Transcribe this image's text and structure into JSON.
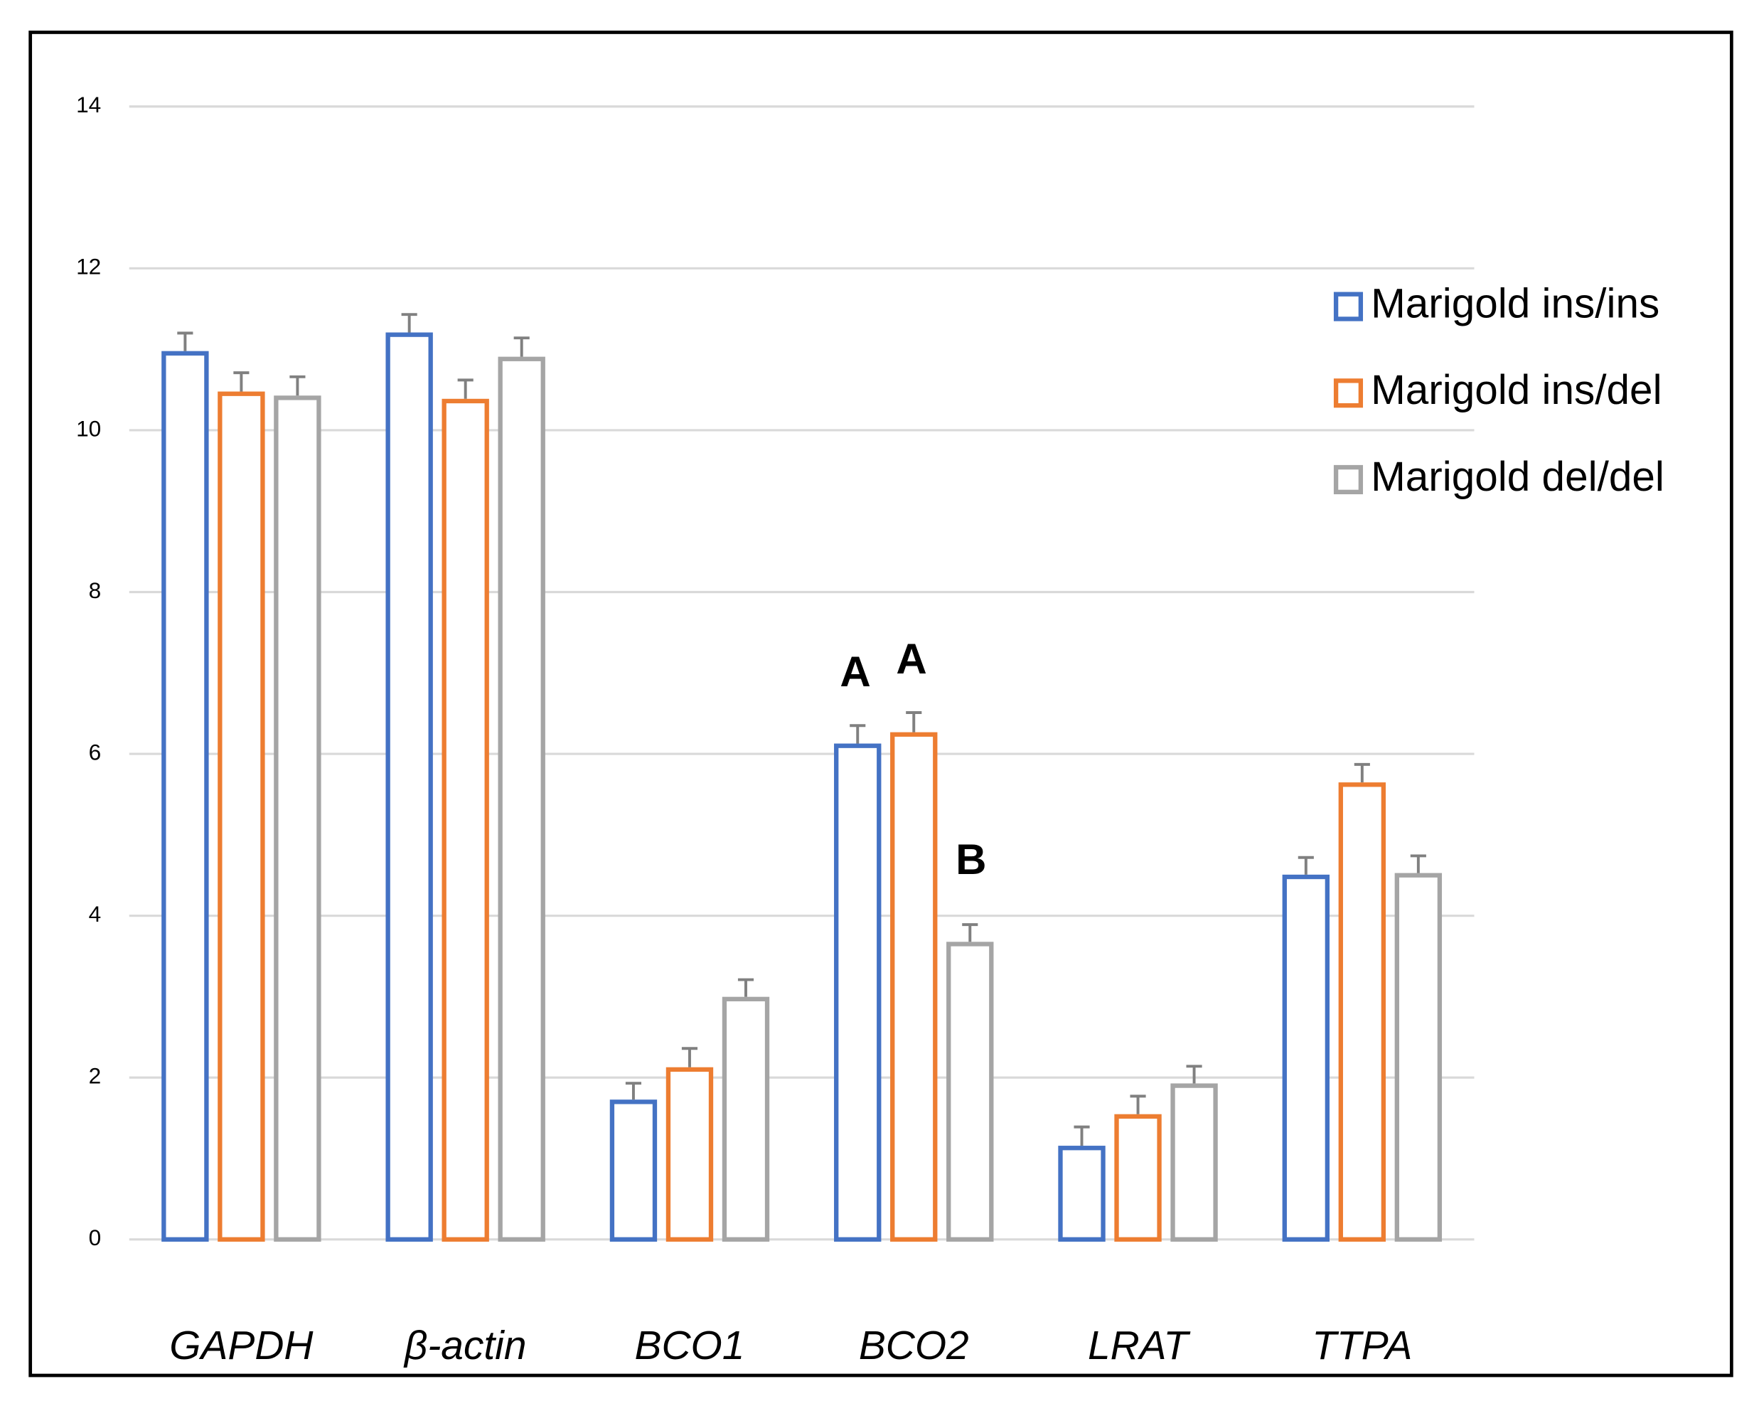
{
  "chart_data": {
    "type": "bar",
    "categories": [
      "GAPDH",
      "β-actin",
      "BCO1",
      "BCO2",
      "LRAT",
      "TTPA"
    ],
    "series": [
      {
        "name": "Marigold ins/ins",
        "color": "#4472c4",
        "values": [
          10.95,
          11.18,
          1.7,
          6.1,
          1.13,
          4.48
        ],
        "errors": [
          0.25,
          0.25,
          0.23,
          0.25,
          0.26,
          0.24
        ],
        "annotations": [
          null,
          null,
          null,
          "A",
          null,
          null
        ]
      },
      {
        "name": "Marigold ins/del",
        "color": "#ed7d31",
        "values": [
          10.45,
          10.36,
          2.1,
          6.24,
          1.52,
          5.62
        ],
        "errors": [
          0.26,
          0.26,
          0.26,
          0.27,
          0.25,
          0.25
        ],
        "annotations": [
          null,
          null,
          null,
          "A",
          null,
          null
        ]
      },
      {
        "name": "Marigold del/del",
        "color": "#a5a5a5",
        "values": [
          10.4,
          10.88,
          2.97,
          3.65,
          1.9,
          4.5
        ],
        "errors": [
          0.26,
          0.26,
          0.24,
          0.24,
          0.24,
          0.24
        ],
        "annotations": [
          null,
          null,
          null,
          "B",
          null,
          null
        ]
      }
    ],
    "ylim": [
      0,
      14
    ],
    "yticks": [
      0,
      2,
      4,
      6,
      8,
      10,
      12,
      14
    ],
    "grid": true,
    "legend": "right"
  }
}
